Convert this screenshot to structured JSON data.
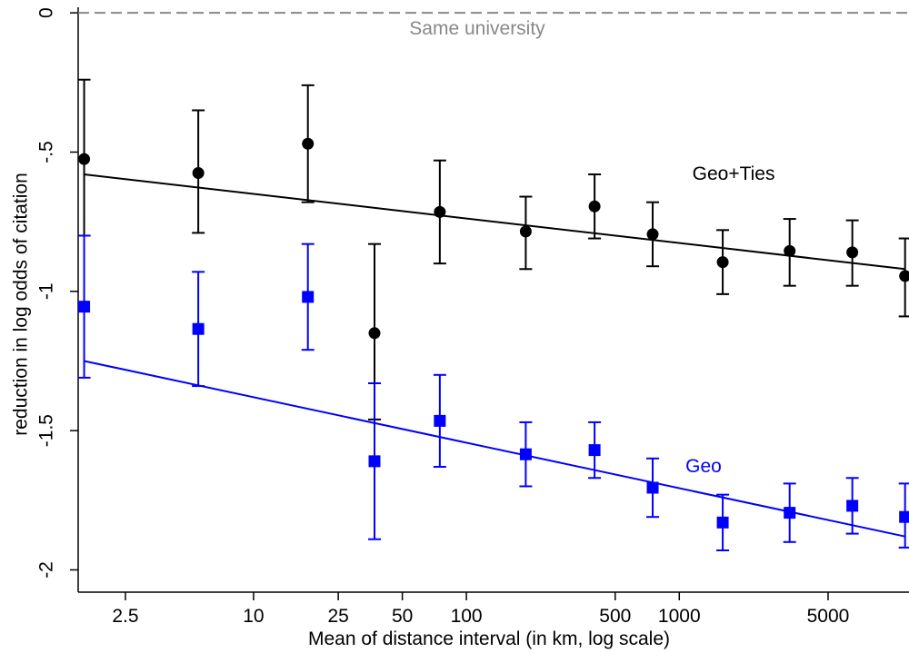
{
  "chart_data": {
    "type": "scatter",
    "title": "",
    "xlabel": "Mean of distance interval (in km, log scale)",
    "ylabel": "reduction in log odds of citation",
    "x_scale": "log",
    "xlim": [
      1.5,
      12000
    ],
    "ylim": [
      -2.08,
      0.02
    ],
    "x_ticks": [
      {
        "value": 2.5,
        "label": "2.5"
      },
      {
        "value": 10,
        "label": "10"
      },
      {
        "value": 25,
        "label": "25"
      },
      {
        "value": 50,
        "label": "50"
      },
      {
        "value": 100,
        "label": "100"
      },
      {
        "value": 500,
        "label": "500"
      },
      {
        "value": 1000,
        "label": "1000"
      },
      {
        "value": 5000,
        "label": "5000"
      }
    ],
    "y_ticks": [
      {
        "value": 0,
        "label": "0"
      },
      {
        "value": -0.5,
        "label": "-.5"
      },
      {
        "value": -1,
        "label": "-1"
      },
      {
        "value": -1.5,
        "label": "-1.5"
      },
      {
        "value": -2,
        "label": "-2"
      }
    ],
    "grid": false,
    "reference_line": {
      "y": 0,
      "label": "Same university",
      "color": "#888888"
    },
    "series": [
      {
        "name": "Geo+Ties",
        "color": "#000000",
        "marker": "circle",
        "points": [
          {
            "x": 1.6,
            "y": -0.525,
            "lo": -0.8,
            "hi": -0.24
          },
          {
            "x": 5.5,
            "y": -0.575,
            "lo": -0.79,
            "hi": -0.35
          },
          {
            "x": 18,
            "y": -0.47,
            "lo": -0.68,
            "hi": -0.26
          },
          {
            "x": 37,
            "y": -1.15,
            "lo": -1.46,
            "hi": -0.83
          },
          {
            "x": 75,
            "y": -0.715,
            "lo": -0.9,
            "hi": -0.53
          },
          {
            "x": 190,
            "y": -0.785,
            "lo": -0.92,
            "hi": -0.66
          },
          {
            "x": 400,
            "y": -0.695,
            "lo": -0.81,
            "hi": -0.58
          },
          {
            "x": 750,
            "y": -0.795,
            "lo": -0.91,
            "hi": -0.68
          },
          {
            "x": 1600,
            "y": -0.895,
            "lo": -1.01,
            "hi": -0.78
          },
          {
            "x": 3300,
            "y": -0.855,
            "lo": -0.98,
            "hi": -0.74
          },
          {
            "x": 6500,
            "y": -0.86,
            "lo": -0.98,
            "hi": -0.745
          },
          {
            "x": 11500,
            "y": -0.945,
            "lo": -1.09,
            "hi": -0.81
          }
        ],
        "fit": [
          {
            "x": 1.6,
            "y": -0.58
          },
          {
            "x": 11500,
            "y": -0.92
          }
        ]
      },
      {
        "name": "Geo",
        "color": "#0000ff",
        "marker": "square",
        "points": [
          {
            "x": 1.6,
            "y": -1.055,
            "lo": -1.31,
            "hi": -0.8
          },
          {
            "x": 5.5,
            "y": -1.135,
            "lo": -1.34,
            "hi": -0.93
          },
          {
            "x": 18,
            "y": -1.02,
            "lo": -1.21,
            "hi": -0.83
          },
          {
            "x": 37,
            "y": -1.61,
            "lo": -1.89,
            "hi": -1.33
          },
          {
            "x": 75,
            "y": -1.465,
            "lo": -1.63,
            "hi": -1.3
          },
          {
            "x": 190,
            "y": -1.585,
            "lo": -1.7,
            "hi": -1.47
          },
          {
            "x": 400,
            "y": -1.57,
            "lo": -1.67,
            "hi": -1.47
          },
          {
            "x": 750,
            "y": -1.705,
            "lo": -1.81,
            "hi": -1.6
          },
          {
            "x": 1600,
            "y": -1.83,
            "lo": -1.93,
            "hi": -1.73
          },
          {
            "x": 3300,
            "y": -1.795,
            "lo": -1.9,
            "hi": -1.69
          },
          {
            "x": 6500,
            "y": -1.77,
            "lo": -1.87,
            "hi": -1.67
          },
          {
            "x": 11500,
            "y": -1.81,
            "lo": -1.92,
            "hi": -1.69
          }
        ],
        "fit": [
          {
            "x": 1.6,
            "y": -1.25
          },
          {
            "x": 11500,
            "y": -1.88
          }
        ]
      }
    ],
    "annotations": [
      {
        "text": "Geo+Ties",
        "x": 1800,
        "y": -0.6,
        "color": "#000000"
      },
      {
        "text": "Geo",
        "x": 1300,
        "y": -1.65,
        "color": "#0000ff"
      }
    ]
  }
}
